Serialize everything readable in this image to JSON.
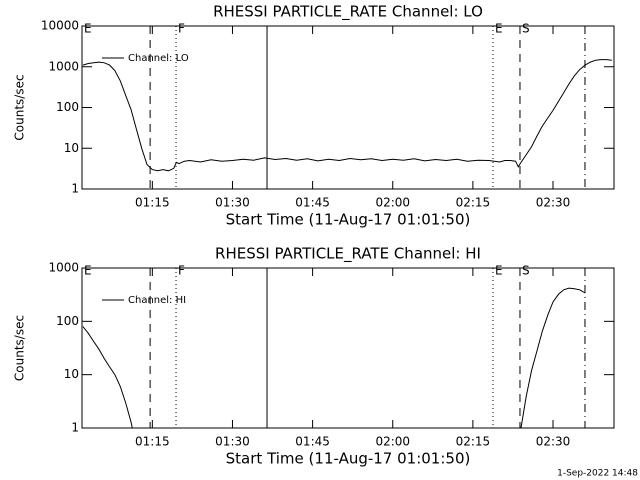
{
  "chart_data": [
    {
      "type": "line",
      "title": "RHESSI PARTICLE_RATE Channel: LO",
      "xlabel": "Start Time (11-Aug-17 01:01:50)",
      "ylabel": "Counts/sec",
      "log_y": true,
      "legend": "upper left",
      "xlim": [
        "01:01:50",
        "02:41:25"
      ],
      "xticks": [
        "01:15",
        "01:30",
        "01:45",
        "02:00",
        "02:15",
        "02:30"
      ],
      "ylim": [
        1,
        10000
      ],
      "yticks": [
        1,
        10,
        100,
        1000,
        10000
      ],
      "x": [
        "01:02",
        "01:03",
        "01:04",
        "01:05",
        "01:06",
        "01:07",
        "01:08",
        "01:09",
        "01:10",
        "01:11",
        "01:12",
        "01:13",
        "01:14",
        "01:15",
        "01:16",
        "01:17",
        "01:18",
        "01:19",
        "01:19:30",
        "01:20",
        "01:21",
        "01:22",
        "01:24",
        "01:26",
        "01:28",
        "01:30",
        "01:32",
        "01:34",
        "01:36",
        "01:38",
        "01:40",
        "01:42",
        "01:44",
        "01:46",
        "01:48",
        "01:50",
        "01:52",
        "01:54",
        "01:56",
        "01:58",
        "02:00",
        "02:02",
        "02:04",
        "02:06",
        "02:08",
        "02:10",
        "02:12",
        "02:14",
        "02:16",
        "02:18",
        "02:20",
        "02:21",
        "02:22",
        "02:23",
        "02:23:30",
        "02:24",
        "02:25",
        "02:26",
        "02:27",
        "02:28",
        "02:29",
        "02:30",
        "02:31",
        "02:32",
        "02:33",
        "02:34",
        "02:35",
        "02:36",
        "02:37",
        "02:38",
        "02:39",
        "02:40",
        "02:41"
      ],
      "series": [
        {
          "name": "Channel: LO",
          "color": "#000000",
          "values": [
            1100,
            1200,
            1250,
            1300,
            1250,
            1100,
            800,
            450,
            200,
            90,
            30,
            10,
            4,
            3,
            2.8,
            3,
            2.8,
            3.2,
            4.5,
            4.2,
            4.8,
            5,
            4.6,
            5.2,
            4.8,
            5,
            5.4,
            5.1,
            5.8,
            5.3,
            5.6,
            5.1,
            5.5,
            4.9,
            5.4,
            5,
            5.6,
            5.2,
            5.5,
            5,
            5.4,
            5.1,
            5.5,
            4.9,
            5.3,
            5,
            5.4,
            4.8,
            5.1,
            5,
            4.6,
            5,
            5,
            4.8,
            3.5,
            4.5,
            7,
            11,
            20,
            35,
            55,
            85,
            140,
            230,
            380,
            600,
            850,
            1100,
            1300,
            1450,
            1500,
            1500,
            1450
          ]
        }
      ],
      "events": [
        {
          "x": "01:01:50",
          "label": "E"
        },
        {
          "x": "01:14:35",
          "style": "dashed"
        },
        {
          "x": "01:19:26",
          "style": "dotted",
          "label": "F"
        },
        {
          "x": "01:36:28",
          "style": "solid"
        },
        {
          "x": "02:18:46",
          "style": "dotted",
          "label": "E"
        },
        {
          "x": "02:23:49",
          "style": "dashed",
          "label": "S"
        },
        {
          "x": "02:35:59",
          "style": "dashdot"
        }
      ]
    },
    {
      "type": "line",
      "title": "RHESSI PARTICLE_RATE Channel: HI",
      "xlabel": "Start Time (11-Aug-17 01:01:50)",
      "ylabel": "Counts/sec",
      "log_y": true,
      "legend": "upper left",
      "xlim": [
        "01:01:50",
        "02:41:25"
      ],
      "xticks": [
        "01:15",
        "01:30",
        "01:45",
        "02:00",
        "02:15",
        "02:30"
      ],
      "ylim": [
        1,
        1000
      ],
      "yticks": [
        1,
        10,
        100,
        1000
      ],
      "x": [
        "01:02",
        "01:03",
        "01:04",
        "01:05",
        "01:06",
        "01:07",
        "01:08",
        "01:09",
        "01:10",
        "01:11",
        "01:11:15",
        "01:30",
        "02:24",
        "02:25",
        "02:26",
        "02:27",
        "02:28",
        "02:29",
        "02:30",
        "02:31",
        "02:32",
        "02:33",
        "02:34",
        "02:35",
        "02:36"
      ],
      "series": [
        {
          "name": "Channel: HI",
          "color": "#000000",
          "values": [
            80,
            60,
            42,
            30,
            20,
            14,
            10,
            6,
            3,
            1.3,
            1,
            null,
            1,
            4,
            12,
            28,
            65,
            130,
            230,
            320,
            390,
            420,
            410,
            390,
            340
          ]
        }
      ],
      "events": [
        {
          "x": "01:01:50",
          "label": "E"
        },
        {
          "x": "01:14:35",
          "style": "dashed"
        },
        {
          "x": "01:19:26",
          "style": "dotted",
          "label": "F"
        },
        {
          "x": "01:36:28",
          "style": "solid"
        },
        {
          "x": "02:18:46",
          "style": "dotted",
          "label": "E"
        },
        {
          "x": "02:23:49",
          "style": "dashed",
          "label": "S"
        },
        {
          "x": "02:35:59",
          "style": "dashdot"
        }
      ]
    }
  ],
  "footer": "1-Sep-2022 14:48"
}
